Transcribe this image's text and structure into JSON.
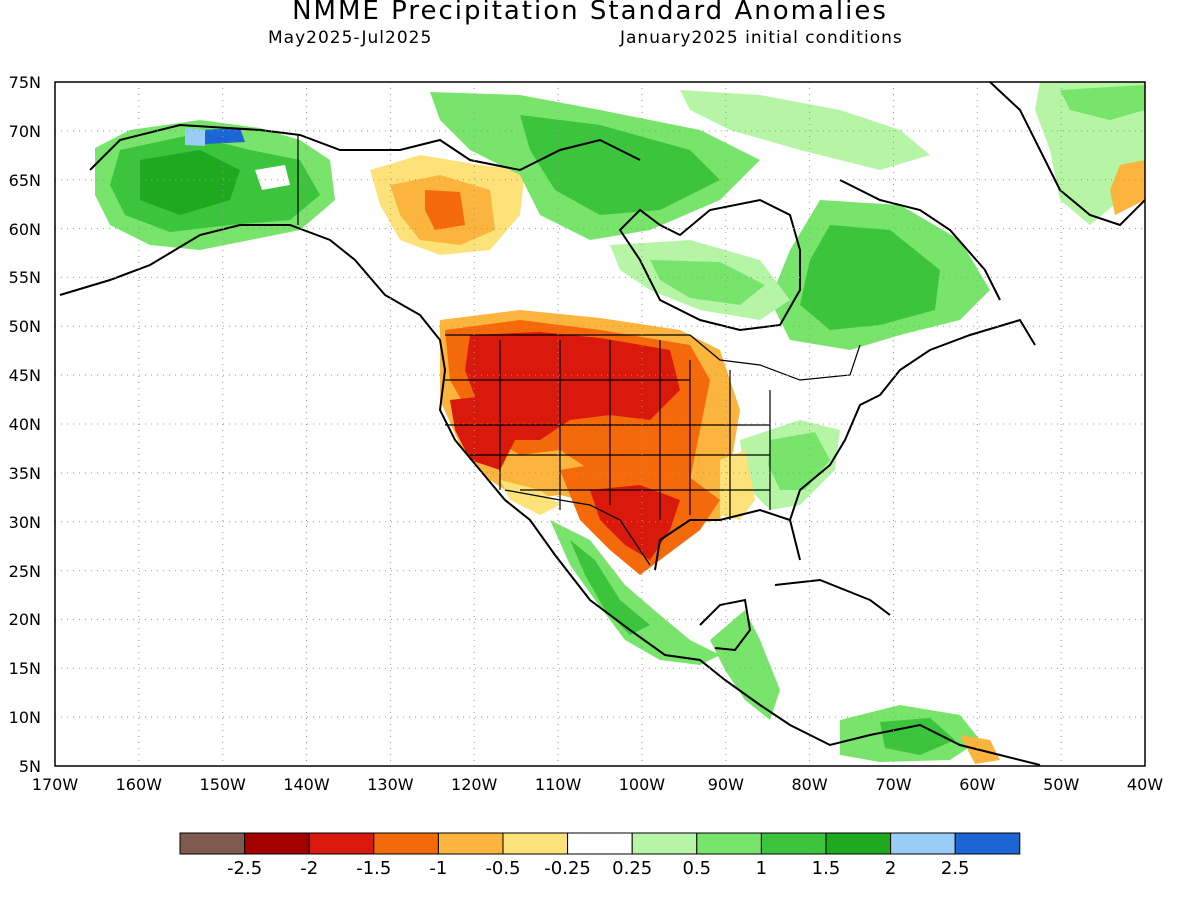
{
  "title": "NMME Precipitation Standard Anomalies",
  "subtitle_left": "May2025-Jul2025",
  "subtitle_right": "January2025 initial conditions",
  "map": {
    "lon_range": [
      -170,
      -40
    ],
    "lat_range": [
      5,
      75
    ],
    "grid": "dotted",
    "lat_labels": [
      "75N",
      "70N",
      "65N",
      "60N",
      "55N",
      "50N",
      "45N",
      "40N",
      "35N",
      "30N",
      "25N",
      "20N",
      "15N",
      "10N",
      "5N"
    ],
    "lon_labels": [
      "170W",
      "160W",
      "150W",
      "140W",
      "130W",
      "120W",
      "110W",
      "100W",
      "90W",
      "80W",
      "70W",
      "60W",
      "50W",
      "40W"
    ]
  },
  "colorbar": {
    "labels": [
      "-2.5",
      "-2",
      "-1.5",
      "-1",
      "-0.5",
      "-0.25",
      "0.25",
      "0.5",
      "1",
      "1.5",
      "2",
      "2.5"
    ],
    "colors": [
      "#7f5a4e",
      "#a50000",
      "#d8190c",
      "#f46a0a",
      "#fbb43e",
      "#fde27a",
      "#ffffff",
      "#b6f5a6",
      "#78e46c",
      "#3cc43c",
      "#1ea91e",
      "#99ccf7",
      "#1b66d4"
    ]
  },
  "anomaly_regions": [
    {
      "name": "Western US dry",
      "class": "-1.5 to -2",
      "color": "#d8190c"
    },
    {
      "name": "Southern Plains dry",
      "class": "-1 to -1.5",
      "color": "#f46a0a"
    },
    {
      "name": "NW Canada dry",
      "class": "-0.5 to -1",
      "color": "#fbb43e"
    },
    {
      "name": "Alaska wet",
      "class": "1 to 2",
      "color": "#3cc43c"
    },
    {
      "name": "Eastern Canada wet",
      "class": "1 to 1.5",
      "color": "#3cc43c"
    },
    {
      "name": "Mexico wet",
      "class": "0.5 to 1.5",
      "color": "#78e46c"
    },
    {
      "name": "Southeast US wet",
      "class": "0.5 to 1",
      "color": "#78e46c"
    },
    {
      "name": "Greenland wet",
      "class": "0.25 to 0.5",
      "color": "#b6f5a6"
    }
  ]
}
